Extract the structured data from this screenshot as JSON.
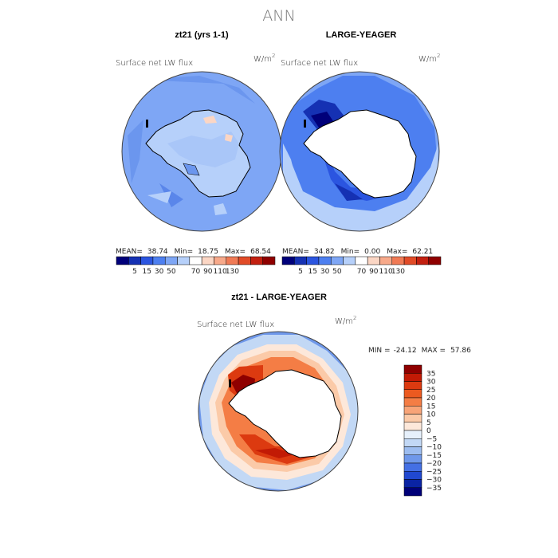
{
  "figure_title": "ANN",
  "chart_data": [
    {
      "type": "heatmap",
      "projection": "south-polar-stereographic",
      "title": "zt21 (yrs 1-1)",
      "field_label": "Surface net LW flux",
      "units": "W/m",
      "units_sup": "2",
      "stats": {
        "mean_label": "MEAN=",
        "mean": "38.74",
        "min_label": "Min=",
        "min": "18.75",
        "max_label": "Max=",
        "max": "68.54"
      },
      "colorbar": {
        "orientation": "horizontal",
        "colors": [
          "#00007a",
          "#1531b3",
          "#2b55e0",
          "#4d7ff0",
          "#7ea6f5",
          "#b6d0fa",
          "#ffffff",
          "#fbd6c4",
          "#f7a98a",
          "#f07a55",
          "#e14b27",
          "#c32010",
          "#8f0000"
        ],
        "tick_labels": [
          "5",
          "15",
          "30",
          "50",
          "70",
          "90",
          "110",
          "130"
        ]
      },
      "field_description": "mostly moderate values; ocean fill near 40-50, continent interior light blue"
    },
    {
      "type": "heatmap",
      "projection": "south-polar-stereographic",
      "title": "LARGE-YEAGER",
      "field_label": "Surface net LW flux",
      "units": "W/m",
      "units_sup": "2",
      "stats": {
        "mean_label": "MEAN=",
        "mean": "34.82",
        "min_label": "Min=",
        "min": "0.00",
        "max_label": "Max=",
        "max": "62.21"
      },
      "colorbar": {
        "orientation": "horizontal",
        "colors": [
          "#00007a",
          "#1531b3",
          "#2b55e0",
          "#4d7ff0",
          "#7ea6f5",
          "#b6d0fa",
          "#ffffff",
          "#fbd6c4",
          "#f7a98a",
          "#f07a55",
          "#e14b27",
          "#c32010",
          "#8f0000"
        ],
        "tick_labels": [
          "5",
          "15",
          "30",
          "50",
          "70",
          "90",
          "110",
          "130"
        ]
      }
    },
    {
      "type": "heatmap",
      "projection": "south-polar-stereographic",
      "title": "zt21 - LARGE-YEAGER",
      "field_label": "Surface net LW flux",
      "units": "W/m",
      "units_sup": "2",
      "stats": {
        "min_label": "MIN =",
        "min": "-24.12",
        "max_label": "MAX =",
        "max": "57.86"
      },
      "colorbar": {
        "orientation": "vertical",
        "colors": [
          "#8f0000",
          "#c21a05",
          "#dc3a10",
          "#ec5a20",
          "#f47d45",
          "#f8a478",
          "#fbcaa8",
          "#fde8da",
          "#e6f0fb",
          "#c2d8f5",
          "#9dbdf0",
          "#6f98ea",
          "#4470e4",
          "#2048d0",
          "#0a24a4",
          "#000078"
        ],
        "tick_labels": [
          "35",
          "30",
          "25",
          "20",
          "15",
          "10",
          "5",
          "0",
          "−5",
          "−10",
          "−15",
          "−20",
          "−25",
          "−30",
          "−35"
        ]
      }
    }
  ]
}
